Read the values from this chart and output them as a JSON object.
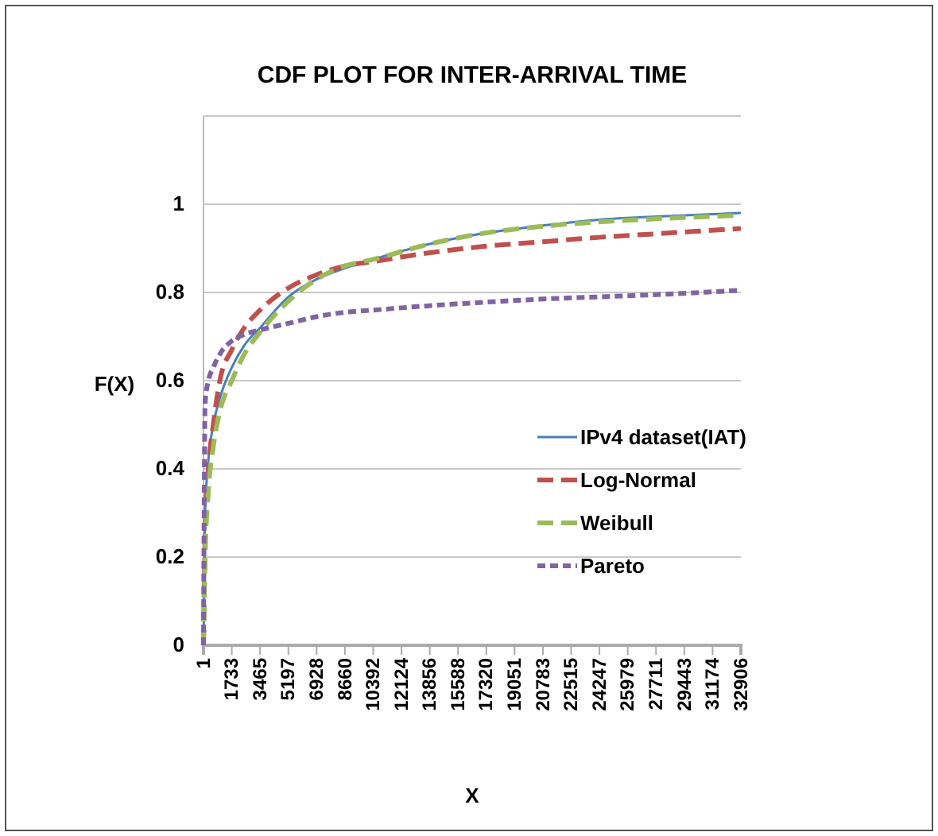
{
  "chart_data": {
    "type": "line",
    "title": "CDF PLOT FOR INTER-ARRIVAL TIME",
    "xlabel": "X",
    "ylabel": "F(X)",
    "x": [
      1,
      100,
      300,
      600,
      1000,
      1733,
      2500,
      3465,
      5197,
      6928,
      8660,
      10392,
      13856,
      17320,
      20783,
      24247,
      27711,
      32906
    ],
    "xlim": [
      1,
      32906
    ],
    "xticks": [
      1,
      1733,
      3465,
      5197,
      6928,
      8660,
      10392,
      12124,
      13856,
      15588,
      17320,
      19051,
      20783,
      22515,
      24247,
      25979,
      27711,
      29443,
      31174,
      32906
    ],
    "ylim": [
      0,
      1.2
    ],
    "yticks": [
      0,
      0.2,
      0.4,
      0.6,
      0.8,
      1,
      {
        "value": 1.2,
        "label": null
      }
    ],
    "grid": "y",
    "legend": "right",
    "marker": "none",
    "series": [
      {
        "name": "IPv4 dataset(IAT)",
        "color": "#4a7ebb",
        "line_style": "solid",
        "values": [
          0,
          0.3,
          0.42,
          0.5,
          0.56,
          0.63,
          0.68,
          0.72,
          0.79,
          0.83,
          0.855,
          0.875,
          0.91,
          0.935,
          0.952,
          0.965,
          0.972,
          0.98
        ]
      },
      {
        "name": "Log-Normal",
        "color": "#c0504d",
        "line_style": "dashed",
        "values": [
          0,
          0.25,
          0.4,
          0.5,
          0.6,
          0.67,
          0.72,
          0.76,
          0.81,
          0.84,
          0.86,
          0.87,
          0.89,
          0.905,
          0.915,
          0.925,
          0.933,
          0.945
        ]
      },
      {
        "name": "Weibull",
        "color": "#9bbb59",
        "line_style": "dashed",
        "values": [
          0,
          0.2,
          0.35,
          0.45,
          0.53,
          0.6,
          0.66,
          0.71,
          0.78,
          0.83,
          0.86,
          0.875,
          0.91,
          0.935,
          0.95,
          0.96,
          0.967,
          0.975
        ]
      },
      {
        "name": "Pareto",
        "color": "#8064a2",
        "line_style": "dotted",
        "values": [
          0,
          0.55,
          0.6,
          0.63,
          0.66,
          0.69,
          0.705,
          0.715,
          0.73,
          0.745,
          0.755,
          0.76,
          0.77,
          0.778,
          0.785,
          0.79,
          0.795,
          0.805
        ]
      }
    ]
  }
}
